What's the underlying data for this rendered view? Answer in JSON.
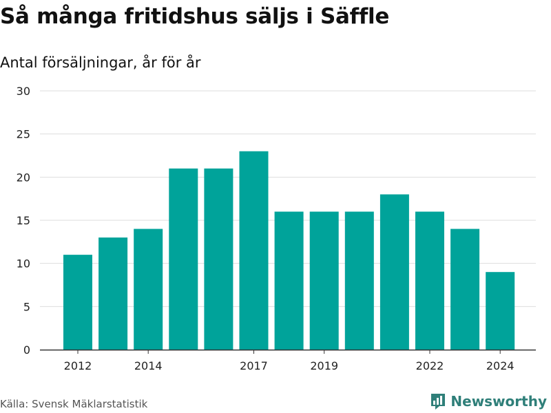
{
  "chart_data": {
    "type": "bar",
    "title": "Så många fritidshus säljs i Säffle",
    "subtitle": "Antal försäljningar, år för år",
    "xlabel": "",
    "ylabel": "",
    "categories": [
      "2012",
      "2013",
      "2014",
      "2015",
      "2016",
      "2017",
      "2018",
      "2019",
      "2020",
      "2021",
      "2022",
      "2023",
      "2024"
    ],
    "values": [
      11,
      13,
      14,
      21,
      21,
      23,
      16,
      16,
      16,
      18,
      16,
      14,
      9
    ],
    "x_tick_labels": [
      "2012",
      "2014",
      "2017",
      "2019",
      "2022",
      "2024"
    ],
    "y_ticks": [
      0,
      5,
      10,
      15,
      20,
      25,
      30
    ],
    "ylim": [
      0,
      30
    ],
    "grid": true,
    "bar_color": "#00a39a"
  },
  "footer": {
    "source": "Källa: Svensk Mäklarstatistik",
    "brand": "Newsworthy",
    "brand_icon": "bar-chart-logo-icon",
    "brand_color": "#2f7f79"
  }
}
